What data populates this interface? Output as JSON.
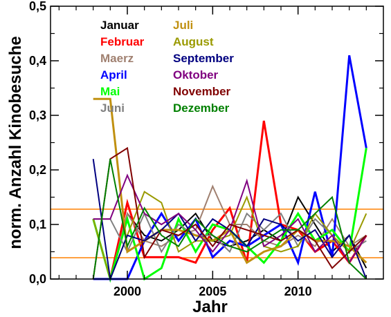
{
  "chart_data": {
    "type": "line",
    "xlabel": "Jahr",
    "ylabel": "norm. Anzahl Kinobesuche",
    "xlim": [
      1995.5,
      2015
    ],
    "ylim": [
      0,
      0.5
    ],
    "xticks": [
      {
        "value": 2000,
        "label": "2000"
      },
      {
        "value": 2005,
        "label": "2005"
      },
      {
        "value": 2010,
        "label": "2010"
      }
    ],
    "yticks": [
      {
        "value": 0.0,
        "label": "0,0"
      },
      {
        "value": 0.1,
        "label": "0,1"
      },
      {
        "value": 0.2,
        "label": "0,2"
      },
      {
        "value": 0.3,
        "label": "0,3"
      },
      {
        "value": 0.4,
        "label": "0,4"
      },
      {
        "value": 0.5,
        "label": "0,5"
      }
    ],
    "x": [
      1998,
      1999,
      2000,
      2001,
      2002,
      2003,
      2004,
      2005,
      2006,
      2007,
      2008,
      2009,
      2010,
      2011,
      2012,
      2013,
      2014
    ],
    "hlines": [
      {
        "y": 0.128,
        "color": "#ff8000"
      },
      {
        "y": 0.039,
        "color": "#ff8000"
      }
    ],
    "series": [
      {
        "name": "Januar",
        "color": "#000000",
        "values": [
          0.0,
          0.0,
          0.12,
          0.08,
          0.07,
          0.09,
          0.12,
          0.07,
          0.06,
          0.07,
          0.09,
          0.07,
          0.15,
          0.1,
          0.05,
          0.08,
          0.02
        ]
      },
      {
        "name": "Februar",
        "color": "#ff0000",
        "values": [
          0.0,
          0.0,
          0.14,
          0.04,
          0.04,
          0.04,
          0.03,
          0.09,
          0.13,
          0.03,
          0.29,
          0.1,
          0.09,
          0.05,
          0.07,
          0.03,
          0.08
        ]
      },
      {
        "name": "Maerz",
        "color": "#a08070",
        "values": [
          0.11,
          0.0,
          0.12,
          0.07,
          0.06,
          0.08,
          0.09,
          0.17,
          0.1,
          0.1,
          0.07,
          0.06,
          0.08,
          0.06,
          0.11,
          0.06,
          0.08
        ]
      },
      {
        "name": "April",
        "color": "#0000ff",
        "values": [
          0.0,
          0.0,
          0.0,
          0.07,
          0.12,
          0.07,
          0.11,
          0.04,
          0.07,
          0.06,
          0.08,
          0.1,
          0.03,
          0.16,
          0.04,
          0.41,
          0.24
        ]
      },
      {
        "name": "Mai",
        "color": "#00ff00",
        "values": [
          0.11,
          0.0,
          0.11,
          0.0,
          0.02,
          0.11,
          0.05,
          0.1,
          0.09,
          0.06,
          0.03,
          0.07,
          0.12,
          0.07,
          0.09,
          0.05,
          0.24
        ]
      },
      {
        "name": "Juni",
        "color": "#808080",
        "values": [
          0.11,
          0.11,
          0.05,
          0.12,
          0.05,
          0.1,
          0.08,
          0.08,
          0.05,
          0.12,
          0.09,
          0.12,
          0.06,
          0.11,
          0.08,
          0.05,
          0.07
        ]
      },
      {
        "name": "Juli",
        "color": "#c09010",
        "values": [
          0.33,
          0.33,
          0.05,
          0.07,
          0.09,
          0.09,
          0.08,
          0.07,
          0.09,
          0.03,
          0.05,
          0.06,
          0.09,
          0.07,
          0.07,
          0.06,
          0.03
        ]
      },
      {
        "name": "August",
        "color": "#9a9a00",
        "values": [
          0.11,
          0.0,
          0.08,
          0.16,
          0.14,
          0.05,
          0.07,
          0.07,
          0.08,
          0.15,
          0.06,
          0.05,
          0.06,
          0.12,
          0.08,
          0.05,
          0.12
        ]
      },
      {
        "name": "September",
        "color": "#000080",
        "values": [
          0.22,
          0.0,
          0.08,
          0.07,
          0.09,
          0.12,
          0.07,
          0.11,
          0.09,
          0.06,
          0.11,
          0.1,
          0.07,
          0.09,
          0.04,
          0.08,
          0.0
        ]
      },
      {
        "name": "Oktober",
        "color": "#800080",
        "values": [
          0.11,
          0.11,
          0.19,
          0.12,
          0.1,
          0.12,
          0.09,
          0.05,
          0.09,
          0.18,
          0.06,
          0.08,
          0.11,
          0.05,
          0.08,
          0.03,
          0.08
        ]
      },
      {
        "name": "November",
        "color": "#800000",
        "values": [
          0.0,
          0.22,
          0.24,
          0.04,
          0.09,
          0.08,
          0.1,
          0.06,
          0.1,
          0.09,
          0.08,
          0.07,
          0.09,
          0.07,
          0.02,
          0.05,
          0.08
        ]
      },
      {
        "name": "Dezember",
        "color": "#008000",
        "values": [
          0.0,
          0.22,
          0.06,
          0.13,
          0.08,
          0.06,
          0.11,
          0.08,
          0.06,
          0.05,
          0.07,
          0.09,
          0.09,
          0.12,
          0.15,
          0.03,
          0.0
        ]
      }
    ],
    "legend": {
      "placement": "top"
    },
    "grid": false
  }
}
